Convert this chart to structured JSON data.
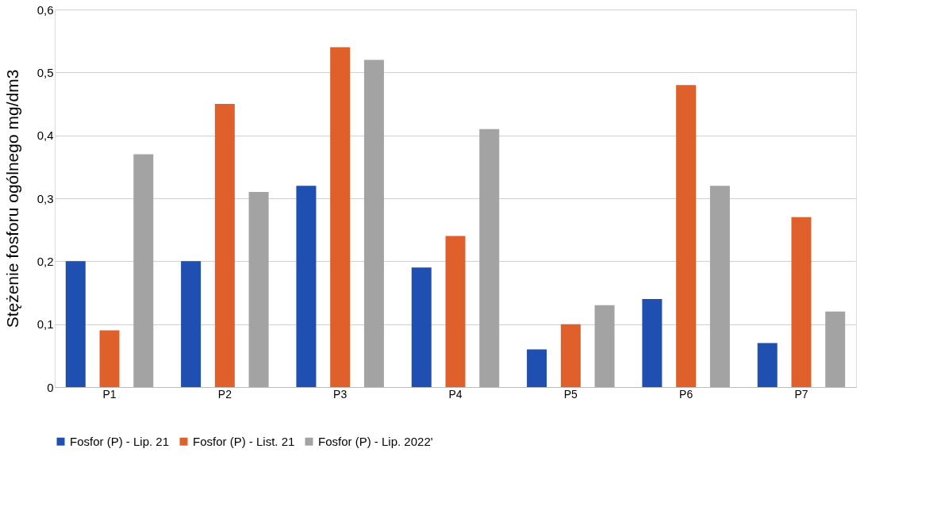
{
  "chart_data": {
    "type": "bar",
    "ylabel": "Stężenie fosforu ogólnego mg/dm3",
    "categories": [
      "P1",
      "P2",
      "P3",
      "P4",
      "P5",
      "P6",
      "P7"
    ],
    "series": [
      {
        "name": "Fosfor (P) - Lip. 21",
        "color": "#1f4fb0",
        "values": [
          0.2,
          0.2,
          0.32,
          0.19,
          0.06,
          0.14,
          0.07
        ]
      },
      {
        "name": "Fosfor (P) - List. 21",
        "color": "#e0602c",
        "values": [
          0.09,
          0.45,
          0.54,
          0.24,
          0.1,
          0.48,
          0.27
        ]
      },
      {
        "name": "Fosfor (P) - Lip. 2022'",
        "color": "#a3a3a3",
        "values": [
          0.37,
          0.31,
          0.52,
          0.41,
          0.13,
          0.32,
          0.12
        ]
      }
    ],
    "ylim": [
      0,
      0.6
    ],
    "yticks": [
      0,
      {
        "value": 0.1,
        "label": "0,1"
      },
      {
        "value": 0.2,
        "label": "0,2"
      },
      {
        "value": 0.3,
        "label": "0,3"
      },
      {
        "value": 0.4,
        "label": "0,4"
      },
      {
        "value": 0.5,
        "label": "0,5"
      },
      {
        "value": 0.6,
        "label": "0,6"
      }
    ],
    "grid": "y",
    "legend": "bottom"
  }
}
